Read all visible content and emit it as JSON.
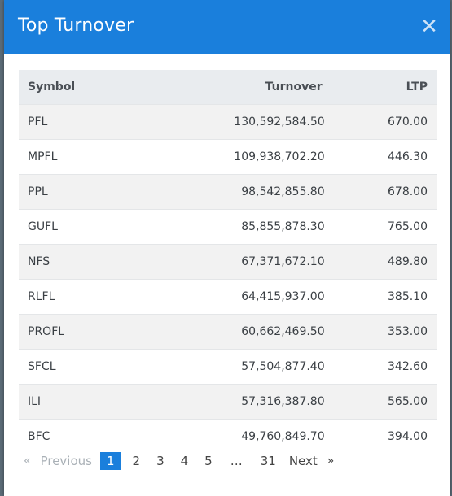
{
  "modal": {
    "title": "Top Turnover",
    "close_glyph": "✕"
  },
  "table": {
    "headers": {
      "symbol": "Symbol",
      "turnover": "Turnover",
      "ltp": "LTP"
    },
    "rows": [
      {
        "symbol": "PFL",
        "turnover": "130,592,584.50",
        "ltp": "670.00"
      },
      {
        "symbol": "MPFL",
        "turnover": "109,938,702.20",
        "ltp": "446.30"
      },
      {
        "symbol": "PPL",
        "turnover": "98,542,855.80",
        "ltp": "678.00"
      },
      {
        "symbol": "GUFL",
        "turnover": "85,855,878.30",
        "ltp": "765.00"
      },
      {
        "symbol": "NFS",
        "turnover": "67,371,672.10",
        "ltp": "489.80"
      },
      {
        "symbol": "RLFL",
        "turnover": "64,415,937.00",
        "ltp": "385.10"
      },
      {
        "symbol": "PROFL",
        "turnover": "60,662,469.50",
        "ltp": "353.00"
      },
      {
        "symbol": "SFCL",
        "turnover": "57,504,877.40",
        "ltp": "342.60"
      },
      {
        "symbol": "ILI",
        "turnover": "57,316,387.80",
        "ltp": "565.00"
      },
      {
        "symbol": "BFC",
        "turnover": "49,760,849.70",
        "ltp": "394.00"
      }
    ]
  },
  "pagination": {
    "prev_arrow": "«",
    "prev_label": "Previous",
    "pages": [
      "1",
      "2",
      "3",
      "4",
      "5"
    ],
    "current_page": "1",
    "ellipsis": "…",
    "last_page": "31",
    "next_label": "Next",
    "next_arrow": "»"
  },
  "colors": {
    "header_bg": "#1a7fdc",
    "active_page_bg": "#1a7fdc",
    "table_header_bg": "#e9ecef",
    "stripe_bg": "#f2f2f2"
  },
  "icons": {
    "close": "close-icon"
  }
}
